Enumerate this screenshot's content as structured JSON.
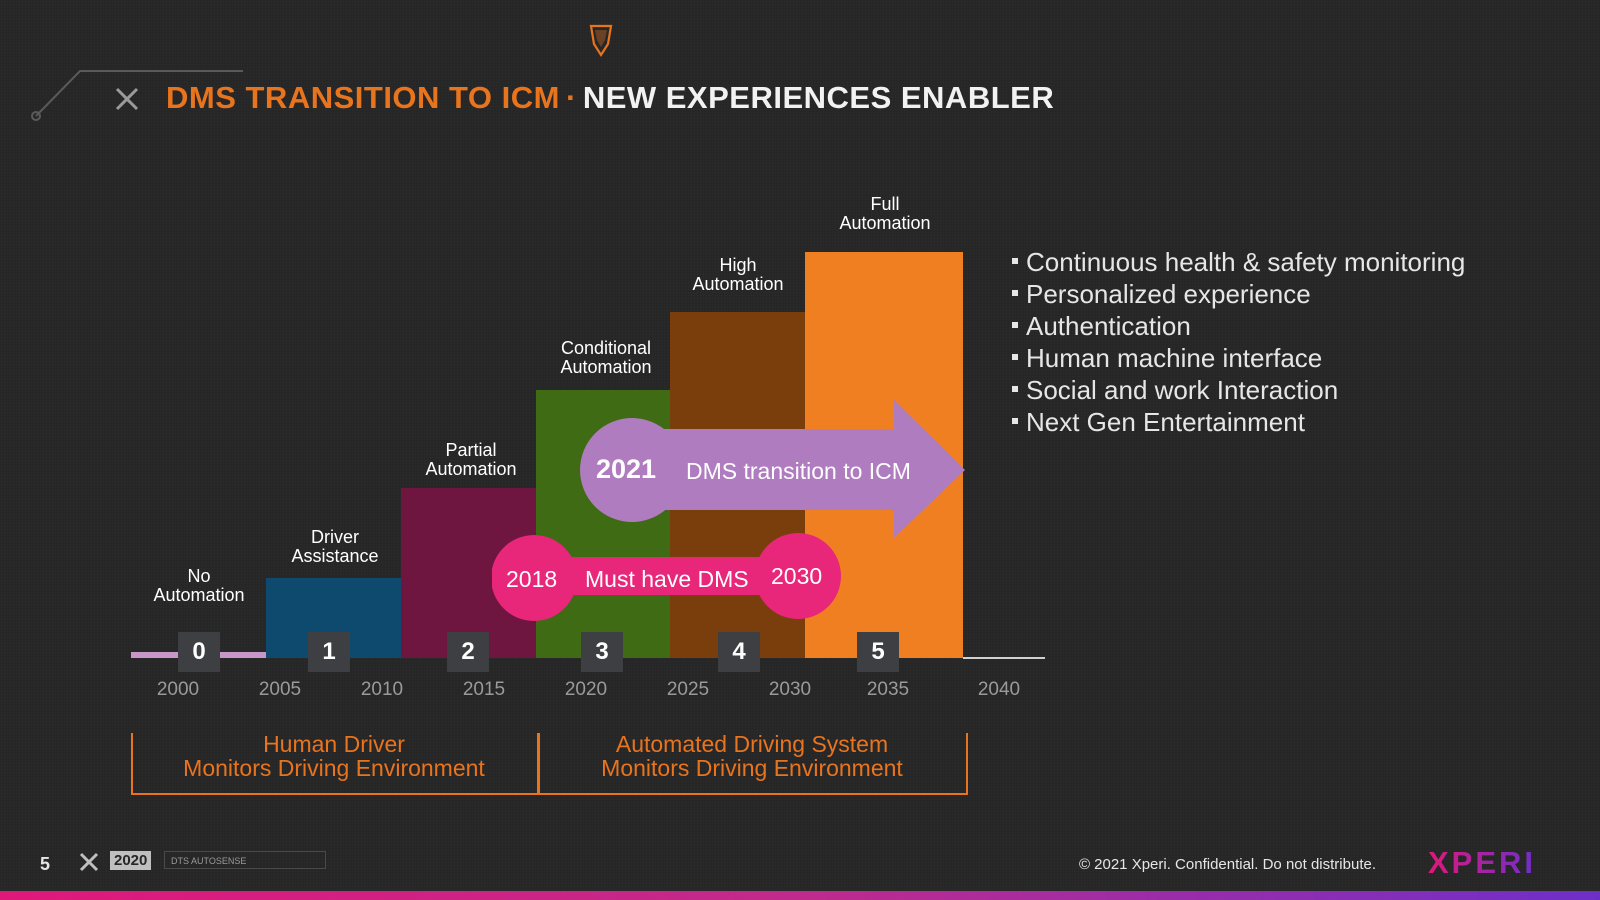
{
  "slide": {
    "title_part1": "DMS TRANSITION TO ICM",
    "title_separator": "·",
    "title_part2": "NEW EXPERIENCES ENABLER"
  },
  "chart_data": {
    "type": "bar",
    "categories": [
      "0",
      "1",
      "2",
      "3",
      "4",
      "5"
    ],
    "labels": [
      "No Automation",
      "Driver Assistance",
      "Partial Automation",
      "Conditional Automation",
      "High Automation",
      "Full Automation"
    ],
    "values": [
      0,
      1,
      2,
      3,
      4,
      5
    ],
    "x_ticks": [
      "2000",
      "2005",
      "2010",
      "2015",
      "2020",
      "2025",
      "2030",
      "2035",
      "2040"
    ],
    "colors": [
      "#c896c8",
      "#0e4a6e",
      "#6e1640",
      "#3f6b14",
      "#7a3e0c",
      "#f07f22"
    ]
  },
  "levels": [
    {
      "num": "0",
      "line1": "No",
      "line2": "Automation"
    },
    {
      "num": "1",
      "line1": "Driver",
      "line2": "Assistance"
    },
    {
      "num": "2",
      "line1": "Partial",
      "line2": "Automation"
    },
    {
      "num": "3",
      "line1": "Conditional",
      "line2": "Automation"
    },
    {
      "num": "4",
      "line1": "High",
      "line2": "Automation"
    },
    {
      "num": "5",
      "line1": "Full",
      "line2": "Automation"
    }
  ],
  "arrow": {
    "year": "2021",
    "text": "DMS transition to ICM"
  },
  "must_have": {
    "start": "2018",
    "text": "Must have DMS",
    "end": "2030"
  },
  "bullets": [
    "Continuous health & safety monitoring",
    "Personalized experience",
    "Authentication",
    "Human machine interface",
    "Social and work Interaction",
    "Next Gen Entertainment"
  ],
  "brackets": {
    "left": {
      "line1": "Human Driver",
      "line2": "Monitors Driving Environment"
    },
    "right": {
      "line1": "Automated Driving System",
      "line2": "Monitors Driving Environment"
    }
  },
  "footer": {
    "page": "5",
    "year_badge": "2020",
    "brand_text": "DTS AUTOSENSE",
    "copyright": "© 2021 Xperi. Confidential. Do not distribute.",
    "logo": "XPERI"
  },
  "colors": {
    "accent_orange": "#e8741e",
    "pink": "#e8267a",
    "purple": "#b07cc0",
    "background": "#262626"
  }
}
